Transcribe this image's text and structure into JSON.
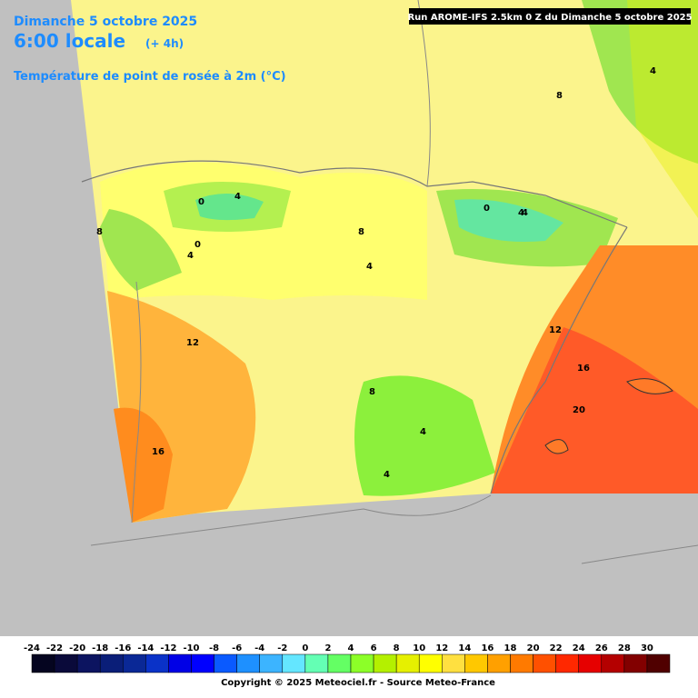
{
  "header": {
    "date": "Dimanche 5 octobre 2025",
    "time": "6:00 locale",
    "offset": "(+ 4h)",
    "parameter": "Température de point de rosée à 2m (°C)",
    "run": "Run AROME-IFS 2.5km 0 Z du Dimanche 5 octobre 2025"
  },
  "contour_labels": [
    "0",
    "4",
    "8",
    "0",
    "4",
    "4",
    "8",
    "0",
    "4",
    "8",
    "4",
    "12",
    "12",
    "16",
    "20",
    "16",
    "8",
    "4",
    "4",
    "4"
  ],
  "colorbar": {
    "labels": [
      "-24",
      "-22",
      "-20",
      "-18",
      "-16",
      "-14",
      "-12",
      "-10",
      "-8",
      "-6",
      "-4",
      "-2",
      "0",
      "2",
      "4",
      "6",
      "8",
      "10",
      "12",
      "14",
      "16",
      "18",
      "20",
      "22",
      "24",
      "26",
      "28",
      "30"
    ],
    "colors": [
      "#050520",
      "#0a0a3a",
      "#0c1460",
      "#0a1e78",
      "#0a2896",
      "#0a32c8",
      "#0000e6",
      "#0000ff",
      "#0a5aff",
      "#1e90ff",
      "#3cb4ff",
      "#64e6ff",
      "#64ffb4",
      "#64ff64",
      "#8cff28",
      "#b4f000",
      "#e6f000",
      "#ffff00",
      "#ffe040",
      "#ffc800",
      "#ffa000",
      "#ff7a00",
      "#ff5000",
      "#ff2800",
      "#e60000",
      "#b40000",
      "#820000",
      "#500000"
    ]
  },
  "footer": {
    "copyright": "Copyright © 2025 Meteociel.fr - Source Meteo-France"
  }
}
